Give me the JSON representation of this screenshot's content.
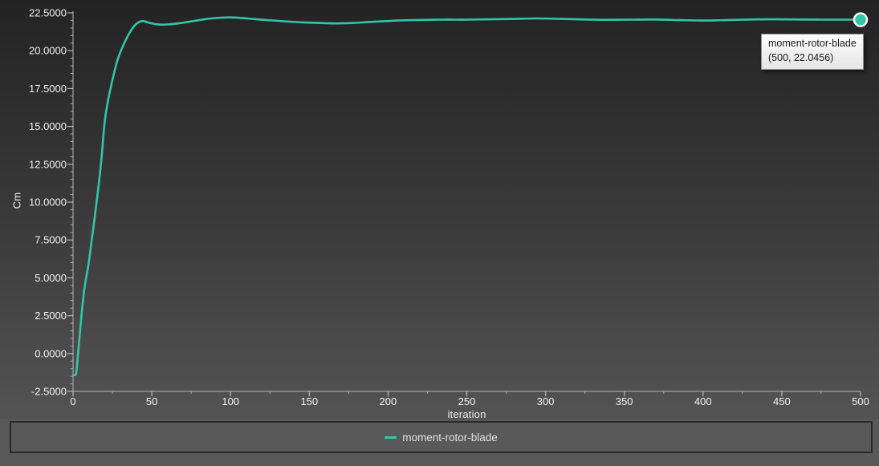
{
  "axes": {
    "xlabel": "iteration",
    "ylabel": "Cm"
  },
  "legend": {
    "label": "moment-rotor-blade"
  },
  "tooltip": {
    "title": "moment-rotor-blade",
    "value_text": "(500, 22.0456)"
  },
  "colors": {
    "series": "#32c6a9",
    "marker_outline": "#ffffff",
    "axis": "#a2a2a2",
    "tick_label": "#f2f2f2",
    "plot_bg_top": "#232323",
    "plot_bg_bottom": "#535353",
    "legend_band_bg": "#59595a",
    "legend_border": "#2a2a2a",
    "tooltip_bg": "#f2f2f2",
    "tooltip_text": "#1a1a1a"
  },
  "chart_data": {
    "type": "line",
    "title": "",
    "xlabel": "iteration",
    "ylabel": "Cm",
    "xlim": [
      0,
      500
    ],
    "ylim": [
      -2.5,
      22.5
    ],
    "grid": false,
    "legend_position": "bottom",
    "x_major_ticks": [
      0,
      50,
      100,
      150,
      200,
      250,
      300,
      350,
      400,
      450,
      500
    ],
    "x_minor_tick_step": 25,
    "y_major_ticks": [
      -2.5,
      0,
      2.5,
      5,
      7.5,
      10,
      12.5,
      15,
      17.5,
      20,
      22.5
    ],
    "y_minor_tick_step": 0.5,
    "y_tick_decimals": 4,
    "series": [
      {
        "name": "moment-rotor-blade",
        "color": "#32c6a9",
        "x": [
          0,
          1,
          2,
          3,
          4,
          5,
          6,
          7,
          8,
          10,
          12,
          14,
          16,
          18,
          20,
          22,
          24,
          26,
          28,
          30,
          33,
          36,
          39,
          42,
          45,
          48,
          52,
          56,
          60,
          65,
          70,
          76,
          82,
          88,
          94,
          100,
          108,
          116,
          126,
          136,
          146,
          156,
          166,
          176,
          186,
          196,
          208,
          220,
          235,
          250,
          265,
          280,
          295,
          310,
          325,
          340,
          355,
          370,
          385,
          400,
          415,
          430,
          445,
          460,
          475,
          490,
          500
        ],
        "y": [
          -1.4,
          -1.42,
          -1.3,
          -0.2,
          0.9,
          2.1,
          3.2,
          4.1,
          4.8,
          6.0,
          7.6,
          9.2,
          10.9,
          12.8,
          15.2,
          16.6,
          17.6,
          18.5,
          19.3,
          19.9,
          20.6,
          21.2,
          21.65,
          21.9,
          21.95,
          21.85,
          21.76,
          21.72,
          21.73,
          21.78,
          21.85,
          21.95,
          22.05,
          22.13,
          22.18,
          22.2,
          22.15,
          22.08,
          22.0,
          21.93,
          21.87,
          21.83,
          21.8,
          21.82,
          21.88,
          21.94,
          22.0,
          22.03,
          22.05,
          22.05,
          22.07,
          22.1,
          22.13,
          22.1,
          22.06,
          22.04,
          22.05,
          22.06,
          22.02,
          21.99,
          22.02,
          22.06,
          22.07,
          22.06,
          22.05,
          22.05,
          22.0456
        ]
      }
    ],
    "end_marker": {
      "x": 500,
      "y": 22.0456
    }
  }
}
